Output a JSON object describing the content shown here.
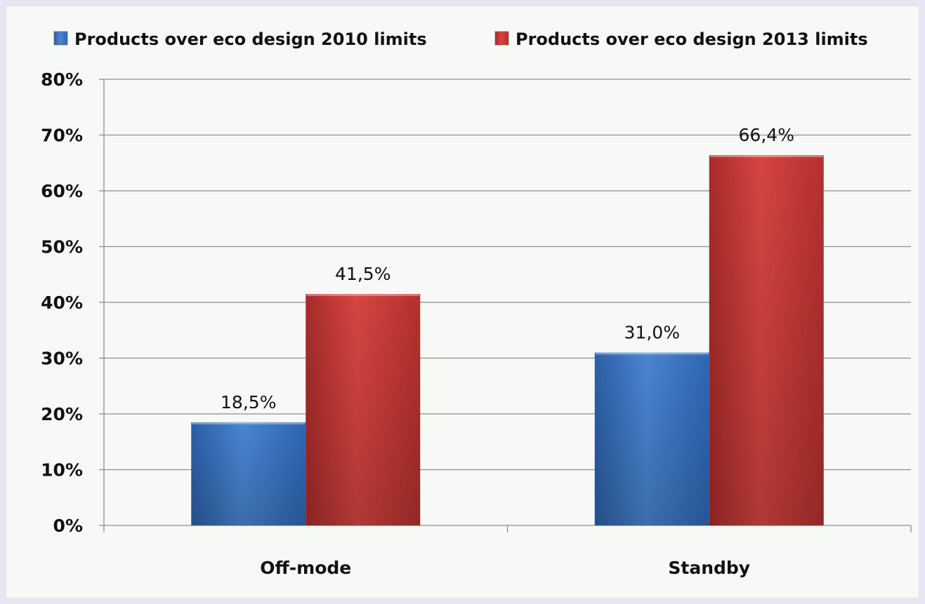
{
  "chart_data": {
    "type": "bar",
    "title": "",
    "xlabel": "",
    "ylabel": "",
    "categories": [
      "Off-mode",
      "Standby"
    ],
    "series": [
      {
        "name": "Products over eco design 2010 limits",
        "values": [
          18.5,
          31.0
        ],
        "labels": [
          "18,5%",
          "31,0%"
        ],
        "color": "#3f78c7"
      },
      {
        "name": "Products over eco design 2013 limits",
        "values": [
          41.5,
          66.4
        ],
        "labels": [
          "41,5%",
          "66,4%"
        ],
        "color": "#c93a37"
      }
    ],
    "ylim": [
      0,
      80
    ],
    "yticks": [
      "0%",
      "10%",
      "20%",
      "30%",
      "40%",
      "50%",
      "60%",
      "70%",
      "80%"
    ],
    "grid": true,
    "legend_position": "top"
  }
}
